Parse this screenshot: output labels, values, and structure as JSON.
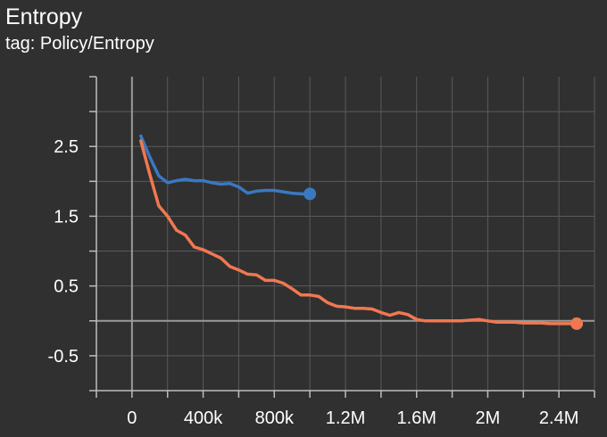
{
  "header": {
    "title": "Entropy",
    "subtitle": "tag: Policy/Entropy"
  },
  "colors": {
    "background": "#303030",
    "grid": "#5a5a5a",
    "zero_line": "#9a9a9a",
    "axis": "#bdbdbd",
    "series_blue": "#3a78c2",
    "series_orange": "#f07850"
  },
  "chart_data": {
    "type": "line",
    "title": "Entropy",
    "subtitle": "tag: Policy/Entropy",
    "xlabel": "",
    "ylabel": "",
    "xlim": [
      -200000,
      2600000
    ],
    "ylim": [
      -1.0,
      3.5
    ],
    "x_ticks": [
      {
        "value": 0,
        "label": "0"
      },
      {
        "value": 400000,
        "label": "400k"
      },
      {
        "value": 800000,
        "label": "800k"
      },
      {
        "value": 1200000,
        "label": "1.2M"
      },
      {
        "value": 1600000,
        "label": "1.6M"
      },
      {
        "value": 2000000,
        "label": "2M"
      },
      {
        "value": 2400000,
        "label": "2.4M"
      }
    ],
    "y_ticks": [
      {
        "value": 2.5,
        "label": "2.5"
      },
      {
        "value": 1.5,
        "label": "1.5"
      },
      {
        "value": 0.5,
        "label": "0.5"
      },
      {
        "value": -0.5,
        "label": "-0.5"
      }
    ],
    "grid": true,
    "series": [
      {
        "color": "#3a78c2",
        "x": [
          50000,
          100000,
          150000,
          200000,
          250000,
          300000,
          350000,
          400000,
          450000,
          500000,
          550000,
          600000,
          650000,
          700000,
          750000,
          800000,
          850000,
          900000,
          950000,
          1000000
        ],
        "y": [
          2.65,
          2.35,
          2.08,
          1.98,
          2.01,
          2.03,
          2.01,
          2.01,
          1.98,
          1.96,
          1.97,
          1.92,
          1.83,
          1.86,
          1.87,
          1.87,
          1.85,
          1.83,
          1.82,
          1.82
        ]
      },
      {
        "color": "#f07850",
        "x": [
          50000,
          100000,
          150000,
          200000,
          250000,
          300000,
          350000,
          400000,
          450000,
          500000,
          550000,
          600000,
          650000,
          700000,
          750000,
          800000,
          850000,
          900000,
          950000,
          1000000,
          1050000,
          1100000,
          1150000,
          1200000,
          1250000,
          1300000,
          1350000,
          1400000,
          1450000,
          1500000,
          1550000,
          1600000,
          1650000,
          1700000,
          1750000,
          1800000,
          1850000,
          1900000,
          1950000,
          2000000,
          2050000,
          2100000,
          2150000,
          2200000,
          2250000,
          2300000,
          2350000,
          2400000,
          2450000,
          2500000
        ],
        "y": [
          2.58,
          2.1,
          1.65,
          1.5,
          1.3,
          1.23,
          1.06,
          1.02,
          0.96,
          0.9,
          0.78,
          0.73,
          0.67,
          0.66,
          0.58,
          0.58,
          0.54,
          0.46,
          0.37,
          0.37,
          0.35,
          0.26,
          0.21,
          0.2,
          0.18,
          0.18,
          0.17,
          0.12,
          0.08,
          0.12,
          0.09,
          0.02,
          0.0,
          0.0,
          0.0,
          0.0,
          0.0,
          0.01,
          0.02,
          0.0,
          -0.02,
          -0.02,
          -0.02,
          -0.03,
          -0.03,
          -0.03,
          -0.04,
          -0.04,
          -0.04,
          -0.04
        ]
      }
    ]
  }
}
